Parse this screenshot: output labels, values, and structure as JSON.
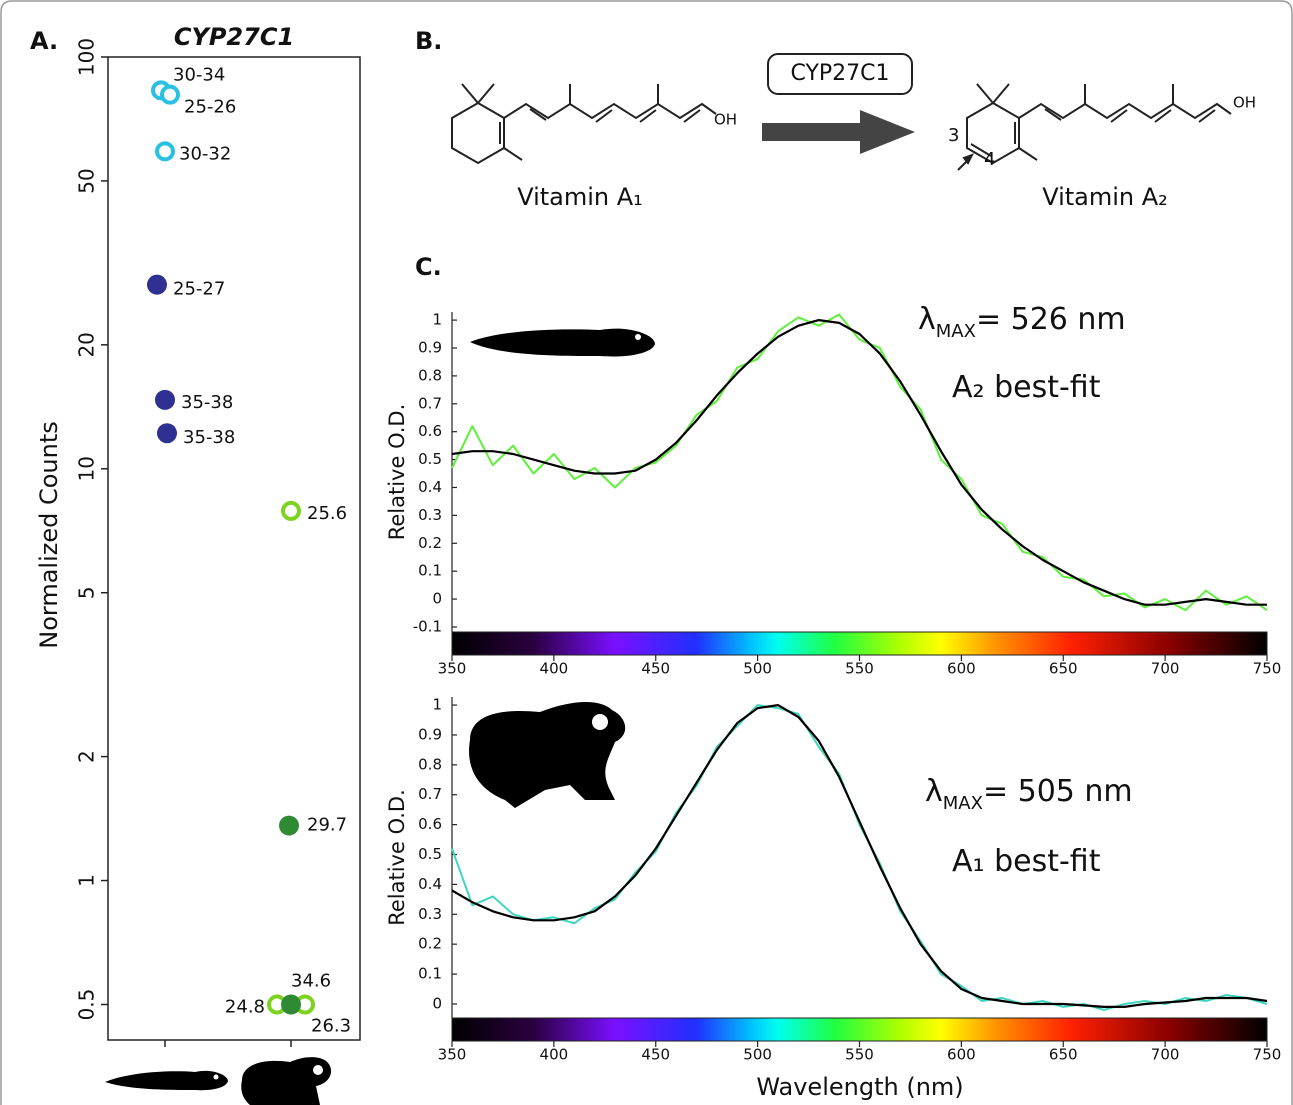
{
  "chart_data": [
    {
      "type": "scatter",
      "panel_label": "A.",
      "title": "CYP27C1",
      "y_label": "Normalized Counts",
      "categories": [
        null,
        null
      ],
      "log_y": true,
      "ylim": [
        0.41,
        100
      ],
      "yticks": [
        0.5,
        1,
        2,
        5,
        10,
        20,
        50,
        100
      ],
      "series": [
        {
          "color": "#29c1e3",
          "marker": "open",
          "label": "30-34",
          "values": [
            83,
            null
          ]
        },
        {
          "color": "#29c1e3",
          "marker": "open",
          "label": "25-26",
          "values": [
            81,
            null
          ]
        },
        {
          "color": "#29c1e3",
          "marker": "open",
          "label": "30-32",
          "values": [
            59,
            null
          ]
        },
        {
          "color": "#2e3192",
          "marker": "filled",
          "label": "25-27",
          "values": [
            28,
            null
          ]
        },
        {
          "color": "#2e3192",
          "marker": "filled",
          "label": "35-38",
          "values": [
            14.7,
            null
          ]
        },
        {
          "color": "#2e3192",
          "marker": "filled",
          "label": "35-38",
          "values": [
            12.2,
            null
          ]
        },
        {
          "color": "#7ed321",
          "marker": "open",
          "label": "25.6",
          "values": [
            null,
            7.9
          ]
        },
        {
          "color": "#2e8b34",
          "marker": "filled",
          "label": "29.7",
          "values": [
            null,
            1.36
          ]
        },
        {
          "color": "#7ed321",
          "marker": "open",
          "label": "24.8",
          "values": [
            null,
            0.5
          ]
        },
        {
          "color": "#7ed321",
          "marker": "open",
          "label": "26.3",
          "values": [
            null,
            0.5
          ]
        },
        {
          "color": "#2e8b34",
          "marker": "filled",
          "label": "34.6",
          "values": [
            null,
            0.5
          ]
        }
      ]
    },
    {
      "type": "line",
      "panel_label": "C.",
      "y_label": "Relative O.D.",
      "annotations": [
        {
          "symbol": "λ",
          "subscript": "MAX",
          "text": "=  526 nm"
        },
        {
          "text": "A₂ best-fit"
        }
      ],
      "x": [
        350,
        360,
        370,
        380,
        390,
        400,
        410,
        420,
        430,
        440,
        450,
        460,
        470,
        480,
        490,
        500,
        510,
        520,
        530,
        540,
        550,
        560,
        570,
        580,
        590,
        600,
        610,
        620,
        630,
        640,
        650,
        660,
        670,
        680,
        690,
        700,
        710,
        720,
        730,
        740,
        750
      ],
      "xlim": [
        350,
        750
      ],
      "xticks": [
        350,
        400,
        450,
        500,
        550,
        600,
        650,
        700,
        750
      ],
      "ylim": [
        -0.118,
        1.029
      ],
      "yticks": [
        -0.1,
        0,
        0.1,
        0.2,
        0.3,
        0.4,
        0.5,
        0.6,
        0.7,
        0.8,
        0.9,
        1
      ],
      "series": [
        {
          "color": "#5ef03a",
          "values": [
            0.47,
            0.62,
            0.48,
            0.55,
            0.45,
            0.52,
            0.43,
            0.47,
            0.4,
            0.47,
            0.49,
            0.55,
            0.66,
            0.71,
            0.83,
            0.86,
            0.96,
            1.01,
            0.98,
            1.02,
            0.93,
            0.9,
            0.76,
            0.68,
            0.5,
            0.43,
            0.3,
            0.27,
            0.17,
            0.15,
            0.08,
            0.07,
            0.01,
            0.02,
            -0.03,
            0.0,
            -0.04,
            0.03,
            -0.02,
            0.01,
            -0.04
          ]
        },
        {
          "color": "#000000",
          "values": [
            0.52,
            0.53,
            0.53,
            0.52,
            0.5,
            0.48,
            0.46,
            0.45,
            0.45,
            0.46,
            0.5,
            0.56,
            0.64,
            0.73,
            0.81,
            0.88,
            0.94,
            0.98,
            1.0,
            0.99,
            0.95,
            0.88,
            0.78,
            0.66,
            0.53,
            0.41,
            0.32,
            0.25,
            0.19,
            0.14,
            0.1,
            0.06,
            0.03,
            0.0,
            -0.02,
            -0.02,
            -0.01,
            0.0,
            -0.01,
            -0.02,
            -0.02
          ]
        }
      ]
    },
    {
      "type": "line",
      "y_label": "Relative O.D.",
      "x_label": "Wavelength (nm)",
      "annotations": [
        {
          "symbol": "λ",
          "subscript": "MAX",
          "text": "= 505 nm"
        },
        {
          "text": "A₁ best-fit"
        }
      ],
      "x": [
        350,
        360,
        370,
        380,
        390,
        400,
        410,
        420,
        430,
        440,
        450,
        460,
        470,
        480,
        490,
        500,
        510,
        520,
        530,
        540,
        550,
        560,
        570,
        580,
        590,
        600,
        610,
        620,
        630,
        640,
        650,
        660,
        670,
        680,
        690,
        700,
        710,
        720,
        730,
        740,
        750
      ],
      "xlim": [
        350,
        750
      ],
      "xticks": [
        350,
        400,
        450,
        500,
        550,
        600,
        650,
        700,
        750
      ],
      "ylim": [
        -0.047,
        1.027
      ],
      "yticks": [
        0,
        0.1,
        0.2,
        0.3,
        0.4,
        0.5,
        0.6,
        0.7,
        0.8,
        0.9,
        1
      ],
      "series": [
        {
          "color": "#3fd6c0",
          "values": [
            0.52,
            0.33,
            0.36,
            0.3,
            0.28,
            0.29,
            0.27,
            0.32,
            0.35,
            0.44,
            0.51,
            0.64,
            0.73,
            0.86,
            0.93,
            1.0,
            0.99,
            0.97,
            0.86,
            0.77,
            0.6,
            0.47,
            0.31,
            0.21,
            0.1,
            0.06,
            0.01,
            0.02,
            0.0,
            0.01,
            -0.01,
            0.0,
            -0.02,
            0.0,
            0.01,
            0.0,
            0.02,
            0.01,
            0.03,
            0.02,
            0.0
          ]
        },
        {
          "color": "#000000",
          "values": [
            0.38,
            0.34,
            0.31,
            0.29,
            0.28,
            0.28,
            0.29,
            0.31,
            0.36,
            0.43,
            0.52,
            0.63,
            0.74,
            0.85,
            0.94,
            0.99,
            1.0,
            0.96,
            0.88,
            0.76,
            0.61,
            0.46,
            0.32,
            0.2,
            0.11,
            0.05,
            0.02,
            0.01,
            0.0,
            0.0,
            0.0,
            -0.005,
            -0.01,
            -0.01,
            0.0,
            0.005,
            0.01,
            0.02,
            0.02,
            0.02,
            0.01
          ]
        }
      ]
    }
  ],
  "diagram": {
    "label": "B.",
    "enzyme": "CYP27C1",
    "substrate": "Vitamin A₁",
    "product": "Vitamin A₂",
    "hydroxyl": [
      "OH",
      "OH"
    ],
    "positions": [
      "3",
      "4"
    ]
  }
}
